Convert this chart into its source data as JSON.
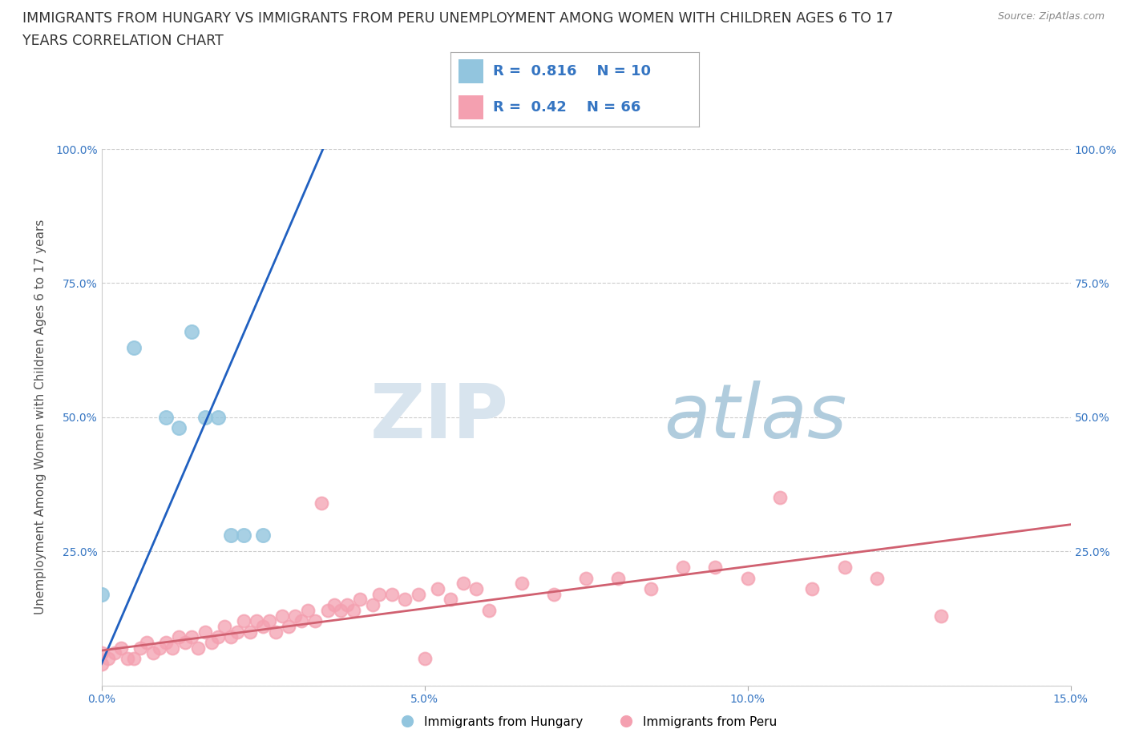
{
  "title_line1": "IMMIGRANTS FROM HUNGARY VS IMMIGRANTS FROM PERU UNEMPLOYMENT AMONG WOMEN WITH CHILDREN AGES 6 TO 17",
  "title_line2": "YEARS CORRELATION CHART",
  "source": "Source: ZipAtlas.com",
  "xlabel_hungary": "Immigrants from Hungary",
  "xlabel_peru": "Immigrants from Peru",
  "ylabel": "Unemployment Among Women with Children Ages 6 to 17 years",
  "xlim": [
    0.0,
    0.15
  ],
  "ylim": [
    0.0,
    1.0
  ],
  "xticks": [
    0.0,
    0.05,
    0.1,
    0.15
  ],
  "xtick_labels": [
    "0.0%",
    "5.0%",
    "10.0%",
    "15.0%"
  ],
  "yticks": [
    0.0,
    0.25,
    0.5,
    0.75,
    1.0
  ],
  "ytick_labels": [
    "",
    "25.0%",
    "50.0%",
    "75.0%",
    "100.0%"
  ],
  "watermark_zip": "ZIP",
  "watermark_atlas": "atlas",
  "hungary_R": 0.816,
  "hungary_N": 10,
  "peru_R": 0.42,
  "peru_N": 66,
  "hungary_color": "#92C5DE",
  "peru_color": "#F4A0B0",
  "hungary_line_color": "#2060C0",
  "peru_line_color": "#D06070",
  "hungary_scatter_x": [
    0.0,
    0.005,
    0.01,
    0.012,
    0.014,
    0.016,
    0.018,
    0.02,
    0.022,
    0.025
  ],
  "hungary_scatter_y": [
    0.17,
    0.63,
    0.5,
    0.48,
    0.66,
    0.5,
    0.5,
    0.28,
    0.28,
    0.28
  ],
  "peru_scatter_x": [
    0.0,
    0.0,
    0.001,
    0.002,
    0.003,
    0.004,
    0.005,
    0.006,
    0.007,
    0.008,
    0.009,
    0.01,
    0.011,
    0.012,
    0.013,
    0.014,
    0.015,
    0.016,
    0.017,
    0.018,
    0.019,
    0.02,
    0.021,
    0.022,
    0.023,
    0.024,
    0.025,
    0.026,
    0.027,
    0.028,
    0.029,
    0.03,
    0.031,
    0.032,
    0.033,
    0.034,
    0.035,
    0.036,
    0.037,
    0.038,
    0.039,
    0.04,
    0.042,
    0.043,
    0.045,
    0.047,
    0.049,
    0.05,
    0.052,
    0.054,
    0.056,
    0.058,
    0.06,
    0.065,
    0.07,
    0.075,
    0.08,
    0.085,
    0.09,
    0.095,
    0.1,
    0.105,
    0.11,
    0.115,
    0.12,
    0.13
  ],
  "peru_scatter_y": [
    0.04,
    0.06,
    0.05,
    0.06,
    0.07,
    0.05,
    0.05,
    0.07,
    0.08,
    0.06,
    0.07,
    0.08,
    0.07,
    0.09,
    0.08,
    0.09,
    0.07,
    0.1,
    0.08,
    0.09,
    0.11,
    0.09,
    0.1,
    0.12,
    0.1,
    0.12,
    0.11,
    0.12,
    0.1,
    0.13,
    0.11,
    0.13,
    0.12,
    0.14,
    0.12,
    0.34,
    0.14,
    0.15,
    0.14,
    0.15,
    0.14,
    0.16,
    0.15,
    0.17,
    0.17,
    0.16,
    0.17,
    0.05,
    0.18,
    0.16,
    0.19,
    0.18,
    0.14,
    0.19,
    0.17,
    0.2,
    0.2,
    0.18,
    0.22,
    0.22,
    0.2,
    0.35,
    0.18,
    0.22,
    0.2,
    0.13
  ],
  "hungary_line_x": [
    0.0,
    0.035
  ],
  "hungary_line_y": [
    0.04,
    1.02
  ],
  "peru_line_x": [
    0.0,
    0.15
  ],
  "peru_line_y": [
    0.065,
    0.3
  ],
  "background_color": "#FFFFFF",
  "grid_color": "#CCCCCC",
  "title_fontsize": 12.5,
  "axis_label_fontsize": 11,
  "tick_fontsize": 10,
  "legend_fontsize": 13
}
